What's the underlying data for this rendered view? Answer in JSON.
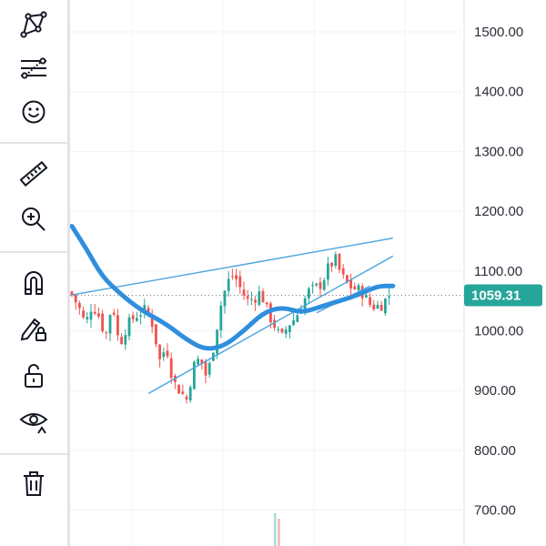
{
  "toolbar": {
    "tools": [
      {
        "name": "pattern-tool-icon"
      },
      {
        "name": "forecasting-tool-icon"
      },
      {
        "name": "emoji-icon"
      },
      {
        "name": "ruler-icon"
      },
      {
        "name": "zoom-in-icon"
      },
      {
        "name": "magnet-icon"
      },
      {
        "name": "lock-drawings-icon"
      },
      {
        "name": "unlock-icon"
      },
      {
        "name": "eye-icon"
      },
      {
        "name": "trash-icon"
      }
    ]
  },
  "colors": {
    "up": "#26a69a",
    "down": "#ef5350",
    "ma_line": "#2f8fdd",
    "trendline": "#4aa3df",
    "price_badge": "#26a69a",
    "grid": "#f0f3fa",
    "axis_text": "#2a2e39"
  },
  "chart_data": {
    "type": "candlestick",
    "y_axis_ticks": [
      "1500.00",
      "1400.00",
      "1300.00",
      "1200.00",
      "1100.00",
      "1000.00",
      "900.00",
      "800.00",
      "700.00"
    ],
    "y_axis_values": [
      1500,
      1400,
      1300,
      1200,
      1100,
      1000,
      900,
      800,
      700
    ],
    "ylim": [
      640,
      1545
    ],
    "current_price": 1059.31,
    "current_price_label": "1059.31",
    "bar_count": 84,
    "close_path": [
      1060,
      1040,
      1010,
      1045,
      1025,
      990,
      1050,
      975,
      1005,
      1020,
      1030,
      1035,
      1010,
      950,
      975,
      915,
      900,
      885,
      940,
      955,
      920,
      975,
      1040,
      1080,
      1095,
      1070,
      1050,
      1055,
      1065,
      1030,
      1010,
      985,
      1010,
      1020,
      1040,
      1065,
      1070,
      1080,
      1105,
      1120,
      1090,
      1075,
      1070,
      1065,
      1045,
      1040,
      1045,
      1059
    ],
    "moving_average": [
      {
        "bar": 0,
        "value": 1175
      },
      {
        "bar": 4,
        "value": 1135
      },
      {
        "bar": 8,
        "value": 1090
      },
      {
        "bar": 13,
        "value": 1060
      },
      {
        "bar": 18,
        "value": 1035
      },
      {
        "bar": 25,
        "value": 1010
      },
      {
        "bar": 30,
        "value": 985
      },
      {
        "bar": 35,
        "value": 968
      },
      {
        "bar": 40,
        "value": 975
      },
      {
        "bar": 45,
        "value": 1000
      },
      {
        "bar": 50,
        "value": 1030
      },
      {
        "bar": 55,
        "value": 1040
      },
      {
        "bar": 60,
        "value": 1030
      },
      {
        "bar": 65,
        "value": 1040
      },
      {
        "bar": 70,
        "value": 1050
      },
      {
        "bar": 75,
        "value": 1060
      },
      {
        "bar": 80,
        "value": 1075
      },
      {
        "bar": 84,
        "value": 1075
      }
    ],
    "trendlines": [
      {
        "name": "upper",
        "from": {
          "bar": 0,
          "value": 1060
        },
        "to": {
          "bar": 84,
          "value": 1155
        }
      },
      {
        "name": "lower",
        "from": {
          "bar": 20,
          "value": 895
        },
        "to": {
          "bar": 84,
          "value": 1125
        }
      },
      {
        "name": "middle",
        "from": {
          "bar": 64,
          "value": 1030
        },
        "to": {
          "bar": 78,
          "value": 1075
        }
      }
    ],
    "volume_bars": [
      {
        "bar": 30,
        "color": "up"
      },
      {
        "bar": 31,
        "color": "down"
      }
    ]
  }
}
